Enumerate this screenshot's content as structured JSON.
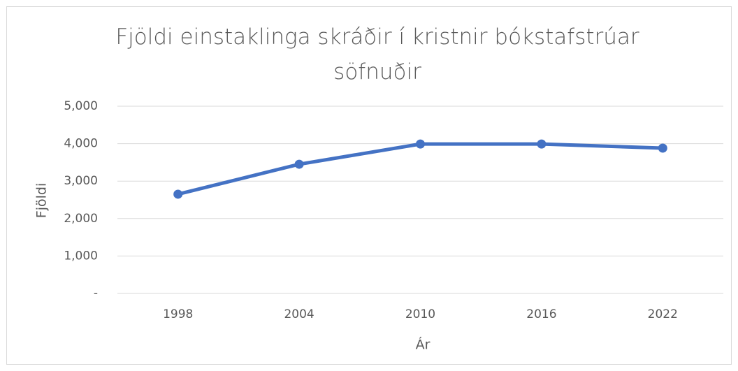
{
  "chart_data": {
    "type": "line",
    "title": "Fjöldi einstaklinga skráðir í kristnir bókstafstrúar söfnuðir",
    "x_label": "Ár",
    "y_label": "Fjöldi",
    "categories": [
      "1998",
      "2004",
      "2010",
      "2016",
      "2022"
    ],
    "series": [
      {
        "name": "Fjöldi",
        "color": "#4472c4",
        "values": [
          2650,
          3450,
          3990,
          3990,
          3880
        ]
      }
    ],
    "ylim": [
      0,
      5000
    ],
    "yticks": [
      {
        "value": 0,
        "label": "-"
      },
      {
        "value": 1000,
        "label": "1,000"
      },
      {
        "value": 2000,
        "label": "2,000"
      },
      {
        "value": 3000,
        "label": "3,000"
      },
      {
        "value": 4000,
        "label": "4,000"
      },
      {
        "value": 5000,
        "label": "5,000"
      }
    ],
    "grid": true
  }
}
